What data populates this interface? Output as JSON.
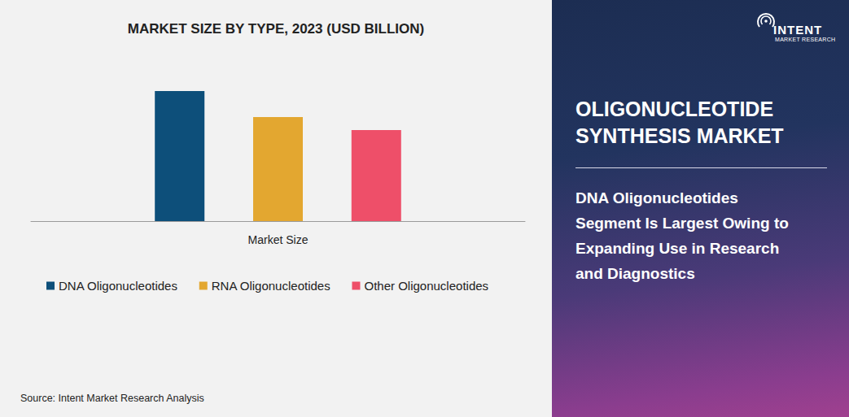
{
  "chart_data": {
    "type": "bar",
    "title": "MARKET SIZE BY TYPE, 2023 (USD BILLION)",
    "categories": [
      "Market Size"
    ],
    "series": [
      {
        "name": "DNA Oligonucleotides",
        "color": "#0d4f7a",
        "values": [
          8.0
        ]
      },
      {
        "name": "RNA Oligonucleotides",
        "color": "#e3a730",
        "values": [
          6.4
        ]
      },
      {
        "name": "Other Oligonucleotides",
        "color": "#ee4f69",
        "values": [
          5.6
        ]
      }
    ],
    "ylim": [
      0,
      10
    ],
    "yticks": [
      0,
      10
    ],
    "grid": false,
    "legend": "bottom",
    "tick_labels": "x"
  },
  "source": "Source: Intent Market Research Analysis",
  "panel": {
    "logo": {
      "name": "INTENT",
      "tagline": "MARKET RESEARCH"
    },
    "title": [
      "OLIGONUCLEOTIDE",
      "SYNTHESIS MARKET"
    ],
    "headline": [
      "DNA Oligonucleotides",
      "Segment Is Largest Owing to",
      "Expanding Use in Research",
      "and Diagnostics"
    ]
  }
}
